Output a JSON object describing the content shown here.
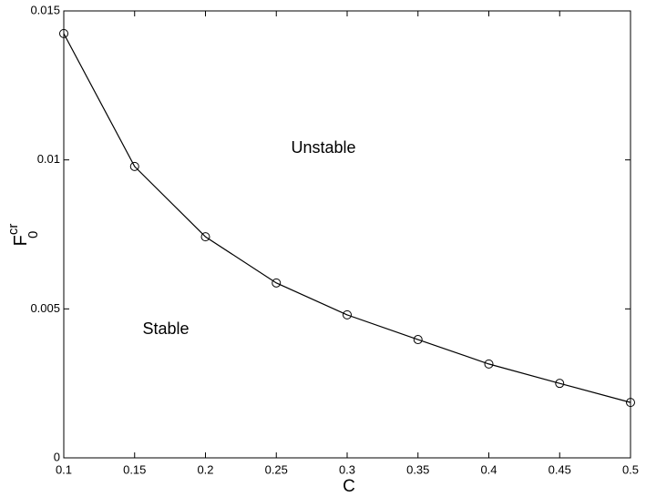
{
  "chart_data": {
    "type": "line",
    "xlabel": "C",
    "ylabel": {
      "base": "F",
      "sup": "cr",
      "sub": "0"
    },
    "annotations": [
      "Unstable",
      "Stable"
    ],
    "x": [
      0.1,
      0.15,
      0.2,
      0.25,
      0.3,
      0.35,
      0.4,
      0.45,
      0.5
    ],
    "series": [
      {
        "color": "#000000",
        "marker": "circle",
        "values": [
          0.01424,
          0.00978,
          0.00742,
          0.00587,
          0.0048,
          0.00397,
          0.00315,
          0.0025,
          0.00186
        ]
      }
    ],
    "xlim": [
      0.1,
      0.5
    ],
    "xticks": [
      0.1,
      0.15,
      0.2,
      0.25,
      0.3,
      0.35,
      0.4,
      0.45,
      0.5
    ],
    "ylim": [
      0,
      0.015
    ],
    "yticks": [
      0,
      0.005,
      0.01,
      0.015
    ],
    "grid": false
  }
}
